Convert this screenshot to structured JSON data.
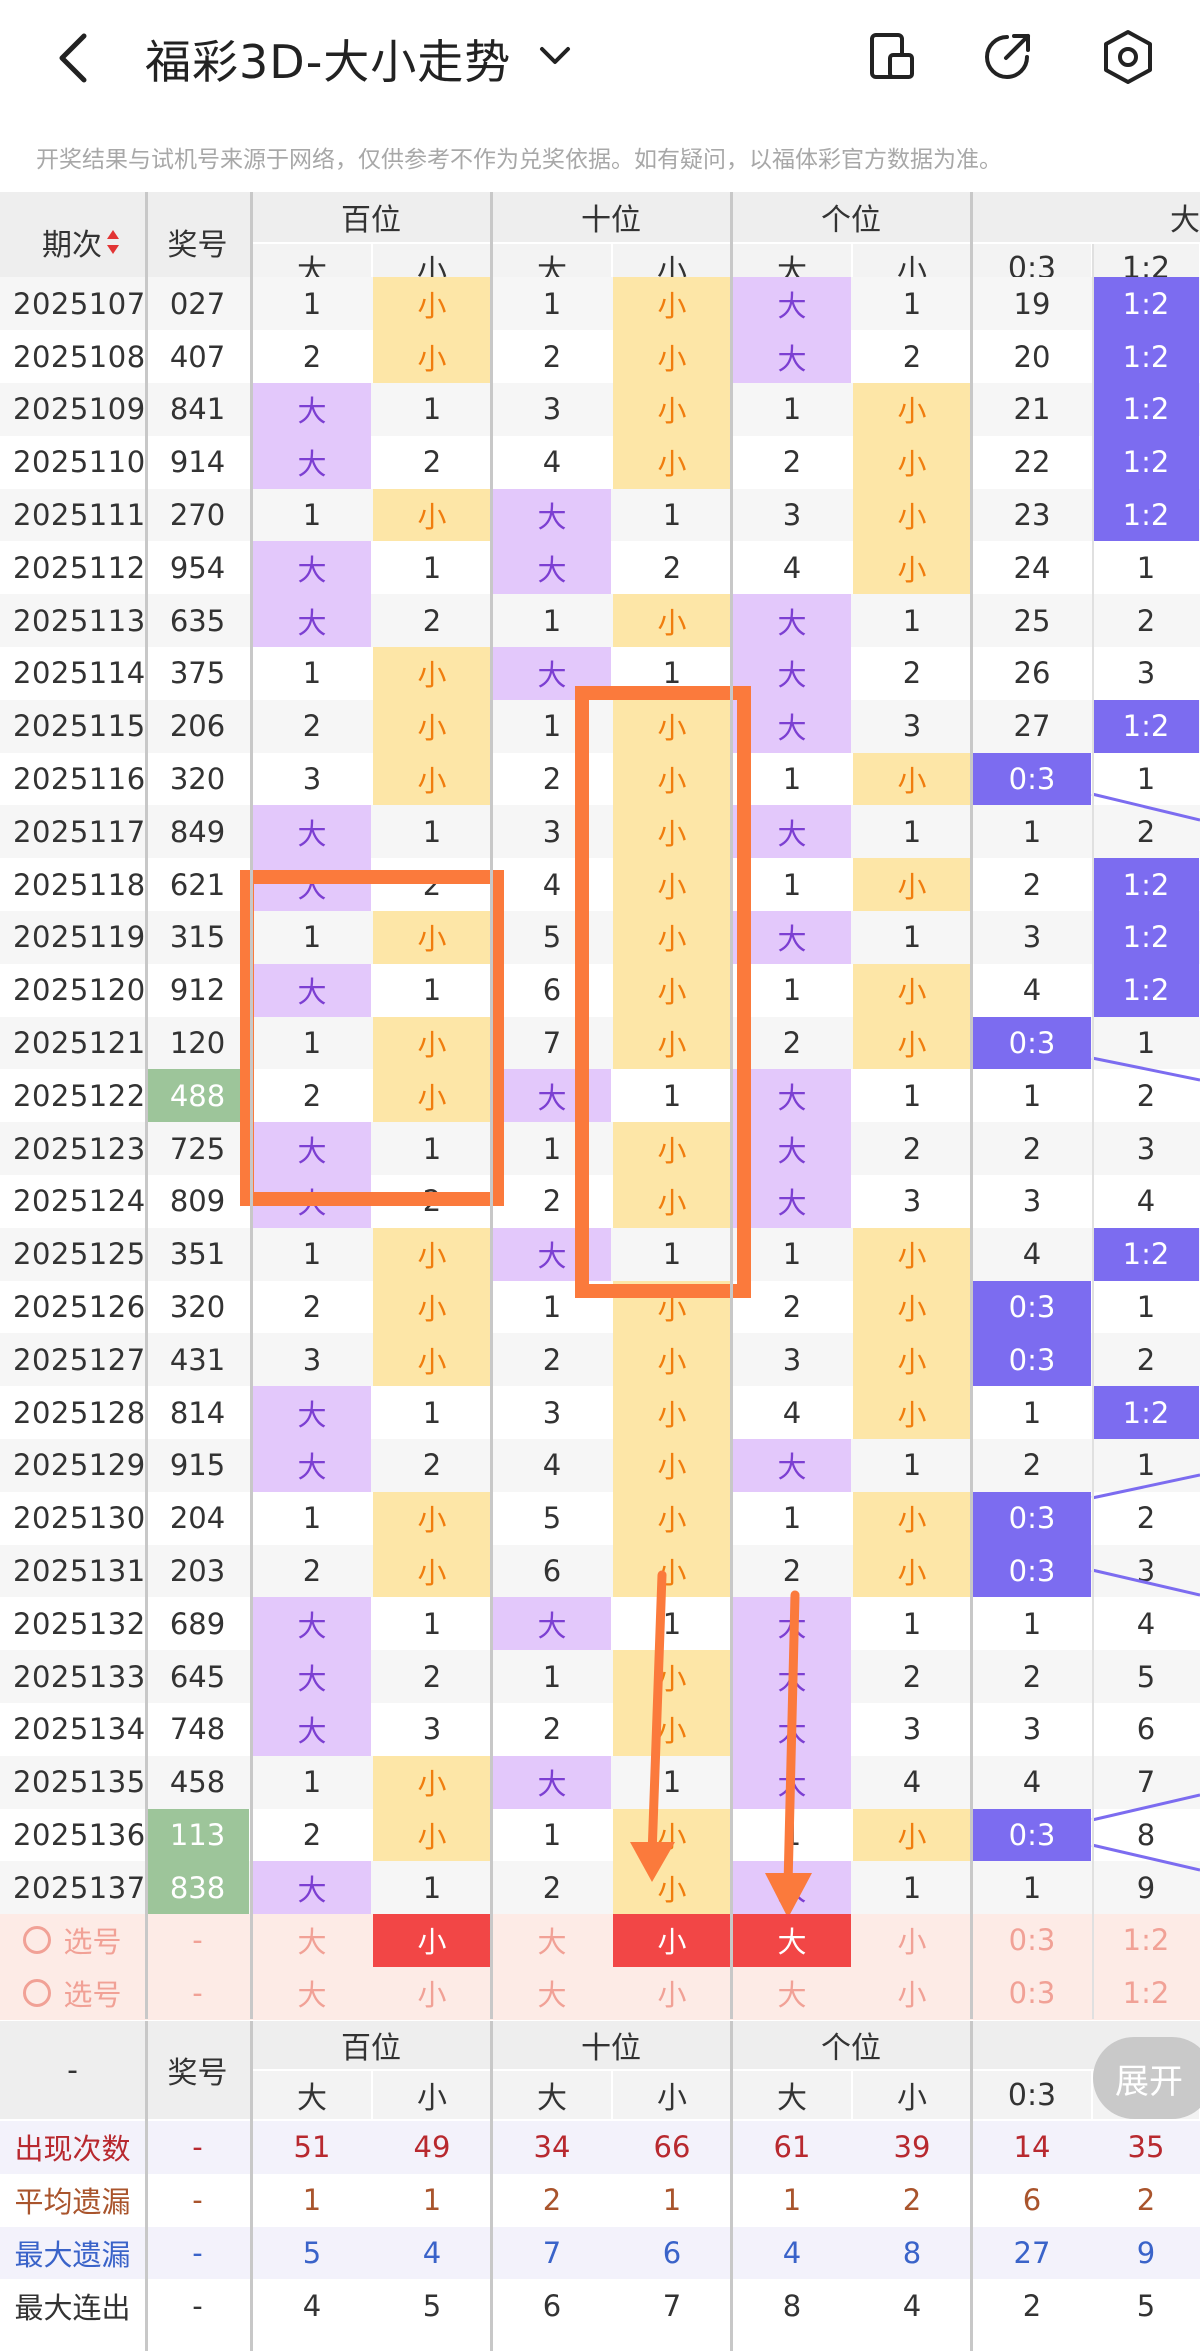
{
  "header": {
    "title": "福彩3D-大小走势",
    "notice": "开奖结果与试机号来源于网络，仅供参考不作为兑奖依据。如有疑问，以福体彩官方数据为准。"
  },
  "table_head": {
    "period": "期次",
    "prize": "奖号",
    "groups": [
      "百位",
      "十位",
      "个位",
      "大"
    ],
    "sub": [
      "大",
      "小",
      "大",
      "小",
      "大",
      "小",
      "0:3",
      "1:2"
    ]
  },
  "rows": [
    {
      "p": "2025107",
      "n": "027",
      "c": [
        "1",
        "小",
        "1",
        "小",
        "大",
        "1",
        "19",
        "1:2"
      ],
      "hi": false
    },
    {
      "p": "2025108",
      "n": "407",
      "c": [
        "2",
        "小",
        "2",
        "小",
        "大",
        "2",
        "20",
        "1:2"
      ],
      "hi": false
    },
    {
      "p": "2025109",
      "n": "841",
      "c": [
        "大",
        "1",
        "3",
        "小",
        "1",
        "小",
        "21",
        "1:2"
      ],
      "hi": false
    },
    {
      "p": "2025110",
      "n": "914",
      "c": [
        "大",
        "2",
        "4",
        "小",
        "2",
        "小",
        "22",
        "1:2"
      ],
      "hi": false
    },
    {
      "p": "2025111",
      "n": "270",
      "c": [
        "1",
        "小",
        "大",
        "1",
        "3",
        "小",
        "23",
        "1:2"
      ],
      "hi": false
    },
    {
      "p": "2025112",
      "n": "954",
      "c": [
        "大",
        "1",
        "大",
        "2",
        "4",
        "小",
        "24",
        "1"
      ],
      "hi": false
    },
    {
      "p": "2025113",
      "n": "635",
      "c": [
        "大",
        "2",
        "1",
        "小",
        "大",
        "1",
        "25",
        "2"
      ],
      "hi": false
    },
    {
      "p": "2025114",
      "n": "375",
      "c": [
        "1",
        "小",
        "大",
        "1",
        "大",
        "2",
        "26",
        "3"
      ],
      "hi": false
    },
    {
      "p": "2025115",
      "n": "206",
      "c": [
        "2",
        "小",
        "1",
        "小",
        "大",
        "3",
        "27",
        "1:2"
      ],
      "hi": false
    },
    {
      "p": "2025116",
      "n": "320",
      "c": [
        "3",
        "小",
        "2",
        "小",
        "1",
        "小",
        "0:3",
        "1"
      ],
      "hi": false
    },
    {
      "p": "2025117",
      "n": "849",
      "c": [
        "大",
        "1",
        "3",
        "小",
        "大",
        "1",
        "1",
        "2"
      ],
      "hi": false
    },
    {
      "p": "2025118",
      "n": "621",
      "c": [
        "大",
        "2",
        "4",
        "小",
        "1",
        "小",
        "2",
        "1:2"
      ],
      "hi": false
    },
    {
      "p": "2025119",
      "n": "315",
      "c": [
        "1",
        "小",
        "5",
        "小",
        "大",
        "1",
        "3",
        "1:2"
      ],
      "hi": false
    },
    {
      "p": "2025120",
      "n": "912",
      "c": [
        "大",
        "1",
        "6",
        "小",
        "1",
        "小",
        "4",
        "1:2"
      ],
      "hi": false
    },
    {
      "p": "2025121",
      "n": "120",
      "c": [
        "1",
        "小",
        "7",
        "小",
        "2",
        "小",
        "0:3",
        "1"
      ],
      "hi": false
    },
    {
      "p": "2025122",
      "n": "488",
      "c": [
        "2",
        "小",
        "大",
        "1",
        "大",
        "1",
        "1",
        "2"
      ],
      "hi": true
    },
    {
      "p": "2025123",
      "n": "725",
      "c": [
        "大",
        "1",
        "1",
        "小",
        "大",
        "2",
        "2",
        "3"
      ],
      "hi": false
    },
    {
      "p": "2025124",
      "n": "809",
      "c": [
        "大",
        "2",
        "2",
        "小",
        "大",
        "3",
        "3",
        "4"
      ],
      "hi": false
    },
    {
      "p": "2025125",
      "n": "351",
      "c": [
        "1",
        "小",
        "大",
        "1",
        "1",
        "小",
        "4",
        "1:2"
      ],
      "hi": false
    },
    {
      "p": "2025126",
      "n": "320",
      "c": [
        "2",
        "小",
        "1",
        "小",
        "2",
        "小",
        "0:3",
        "1"
      ],
      "hi": false
    },
    {
      "p": "2025127",
      "n": "431",
      "c": [
        "3",
        "小",
        "2",
        "小",
        "3",
        "小",
        "0:3",
        "2"
      ],
      "hi": false
    },
    {
      "p": "2025128",
      "n": "814",
      "c": [
        "大",
        "1",
        "3",
        "小",
        "4",
        "小",
        "1",
        "1:2"
      ],
      "hi": false
    },
    {
      "p": "2025129",
      "n": "915",
      "c": [
        "大",
        "2",
        "4",
        "小",
        "大",
        "1",
        "2",
        "1"
      ],
      "hi": false
    },
    {
      "p": "2025130",
      "n": "204",
      "c": [
        "1",
        "小",
        "5",
        "小",
        "1",
        "小",
        "0:3",
        "2"
      ],
      "hi": false
    },
    {
      "p": "2025131",
      "n": "203",
      "c": [
        "2",
        "小",
        "6",
        "小",
        "2",
        "小",
        "0:3",
        "3"
      ],
      "hi": false
    },
    {
      "p": "2025132",
      "n": "689",
      "c": [
        "大",
        "1",
        "大",
        "1",
        "大",
        "1",
        "1",
        "4"
      ],
      "hi": false
    },
    {
      "p": "2025133",
      "n": "645",
      "c": [
        "大",
        "2",
        "1",
        "小",
        "大",
        "2",
        "2",
        "5"
      ],
      "hi": false
    },
    {
      "p": "2025134",
      "n": "748",
      "c": [
        "大",
        "3",
        "2",
        "小",
        "大",
        "3",
        "3",
        "6"
      ],
      "hi": false
    },
    {
      "p": "2025135",
      "n": "458",
      "c": [
        "1",
        "小",
        "大",
        "1",
        "大",
        "4",
        "4",
        "7"
      ],
      "hi": false
    },
    {
      "p": "2025136",
      "n": "113",
      "c": [
        "2",
        "小",
        "1",
        "小",
        "1",
        "小",
        "0:3",
        "8"
      ],
      "hi": true
    },
    {
      "p": "2025137",
      "n": "838",
      "c": [
        "大",
        "1",
        "2",
        "小",
        "大",
        "1",
        "1",
        "9"
      ],
      "hi": true
    }
  ],
  "select_rows": [
    {
      "label": "选号",
      "dash": "-",
      "c": [
        "大",
        "小",
        "大",
        "小",
        "大",
        "小",
        "0:3",
        "1:2"
      ],
      "on": [
        false,
        true,
        false,
        true,
        true,
        false,
        false,
        false
      ]
    },
    {
      "label": "选号",
      "dash": "-",
      "c": [
        "大",
        "小",
        "大",
        "小",
        "大",
        "小",
        "0:3",
        "1:2"
      ],
      "on": [
        false,
        false,
        false,
        false,
        false,
        false,
        false,
        false
      ]
    }
  ],
  "stats_head": {
    "dash": "-",
    "prize": "奖号",
    "groups": [
      "百位",
      "十位",
      "个位"
    ],
    "sub": [
      "大",
      "小",
      "大",
      "小",
      "大",
      "小",
      "0:3",
      "1:2"
    ]
  },
  "stats": [
    {
      "label": "出现次数",
      "dash": "-",
      "v": [
        "51",
        "49",
        "34",
        "66",
        "61",
        "39",
        "14",
        "35"
      ],
      "color": "#b8292f",
      "bg": "#f3f2fb"
    },
    {
      "label": "平均遗漏",
      "dash": "-",
      "v": [
        "1",
        "1",
        "2",
        "1",
        "1",
        "2",
        "6",
        "2"
      ],
      "color": "#a9542c",
      "bg": "#ffffff"
    },
    {
      "label": "最大遗漏",
      "dash": "-",
      "v": [
        "5",
        "4",
        "7",
        "6",
        "4",
        "8",
        "27",
        "9"
      ],
      "color": "#3a63c9",
      "bg": "#f3f2fb"
    },
    {
      "label": "最大连出",
      "dash": "-",
      "v": [
        "4",
        "5",
        "6",
        "7",
        "8",
        "4",
        "2",
        "5"
      ],
      "color": "#333333",
      "bg": "#ffffff"
    }
  ],
  "expand_label": "展开",
  "colors": {
    "accent_orange": "#fb7a3c",
    "big": "#e3c8fb",
    "small": "#fde6a7",
    "ratio": "#7c6cf0",
    "select_on": "#f24646"
  }
}
